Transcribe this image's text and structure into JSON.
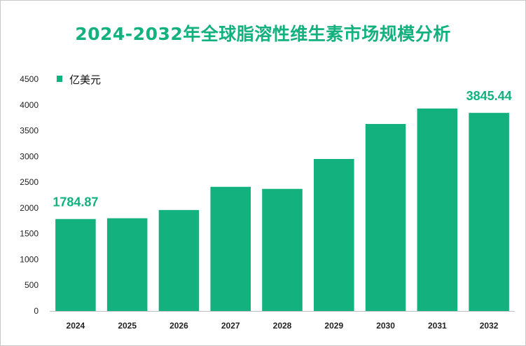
{
  "title": "2024-2032年全球脂溶性维生素市场规模分析",
  "chart_data": {
    "type": "bar",
    "title": "2024-2032年全球脂溶性维生素市场规模分析",
    "categories": [
      "2024",
      "2025",
      "2026",
      "2027",
      "2028",
      "2029",
      "2030",
      "2031",
      "2032"
    ],
    "series": [
      {
        "name": "亿美元",
        "values": [
          1784.87,
          1800,
          1960,
          2410,
          2370,
          2950,
          3630,
          3930,
          3845.44
        ]
      }
    ],
    "data_labels": [
      {
        "category": "2024",
        "text": "1784.87"
      },
      {
        "category": "2032",
        "text": "3845.44"
      }
    ],
    "yticks": [
      "0",
      "500",
      "1000",
      "1500",
      "2000",
      "2500",
      "3000",
      "3500",
      "4000",
      "4500"
    ],
    "ylim": [
      0,
      4500
    ],
    "xlabel": "",
    "ylabel": "",
    "grid": false,
    "legend_position": "top-left",
    "colors": {
      "bar": "#12b17e",
      "title": "#12b17e",
      "label": "#12b17e"
    }
  }
}
